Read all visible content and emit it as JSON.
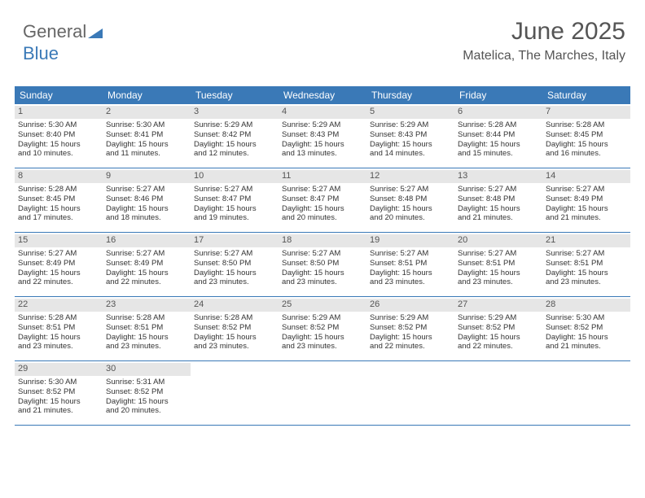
{
  "logo": {
    "part1": "General",
    "part2": "Blue"
  },
  "header": {
    "month": "June 2025",
    "location": "Matelica, The Marches, Italy"
  },
  "colors": {
    "header_bar": "#3a79b7",
    "header_text": "#ffffff",
    "daynum_bg": "#e6e6e6",
    "text": "#333333",
    "page_bg": "#ffffff"
  },
  "daynames": [
    "Sunday",
    "Monday",
    "Tuesday",
    "Wednesday",
    "Thursday",
    "Friday",
    "Saturday"
  ],
  "weeks": [
    [
      {
        "n": "1",
        "sr": "Sunrise: 5:30 AM",
        "ss": "Sunset: 8:40 PM",
        "d1": "Daylight: 15 hours",
        "d2": "and 10 minutes."
      },
      {
        "n": "2",
        "sr": "Sunrise: 5:30 AM",
        "ss": "Sunset: 8:41 PM",
        "d1": "Daylight: 15 hours",
        "d2": "and 11 minutes."
      },
      {
        "n": "3",
        "sr": "Sunrise: 5:29 AM",
        "ss": "Sunset: 8:42 PM",
        "d1": "Daylight: 15 hours",
        "d2": "and 12 minutes."
      },
      {
        "n": "4",
        "sr": "Sunrise: 5:29 AM",
        "ss": "Sunset: 8:43 PM",
        "d1": "Daylight: 15 hours",
        "d2": "and 13 minutes."
      },
      {
        "n": "5",
        "sr": "Sunrise: 5:29 AM",
        "ss": "Sunset: 8:43 PM",
        "d1": "Daylight: 15 hours",
        "d2": "and 14 minutes."
      },
      {
        "n": "6",
        "sr": "Sunrise: 5:28 AM",
        "ss": "Sunset: 8:44 PM",
        "d1": "Daylight: 15 hours",
        "d2": "and 15 minutes."
      },
      {
        "n": "7",
        "sr": "Sunrise: 5:28 AM",
        "ss": "Sunset: 8:45 PM",
        "d1": "Daylight: 15 hours",
        "d2": "and 16 minutes."
      }
    ],
    [
      {
        "n": "8",
        "sr": "Sunrise: 5:28 AM",
        "ss": "Sunset: 8:45 PM",
        "d1": "Daylight: 15 hours",
        "d2": "and 17 minutes."
      },
      {
        "n": "9",
        "sr": "Sunrise: 5:27 AM",
        "ss": "Sunset: 8:46 PM",
        "d1": "Daylight: 15 hours",
        "d2": "and 18 minutes."
      },
      {
        "n": "10",
        "sr": "Sunrise: 5:27 AM",
        "ss": "Sunset: 8:47 PM",
        "d1": "Daylight: 15 hours",
        "d2": "and 19 minutes."
      },
      {
        "n": "11",
        "sr": "Sunrise: 5:27 AM",
        "ss": "Sunset: 8:47 PM",
        "d1": "Daylight: 15 hours",
        "d2": "and 20 minutes."
      },
      {
        "n": "12",
        "sr": "Sunrise: 5:27 AM",
        "ss": "Sunset: 8:48 PM",
        "d1": "Daylight: 15 hours",
        "d2": "and 20 minutes."
      },
      {
        "n": "13",
        "sr": "Sunrise: 5:27 AM",
        "ss": "Sunset: 8:48 PM",
        "d1": "Daylight: 15 hours",
        "d2": "and 21 minutes."
      },
      {
        "n": "14",
        "sr": "Sunrise: 5:27 AM",
        "ss": "Sunset: 8:49 PM",
        "d1": "Daylight: 15 hours",
        "d2": "and 21 minutes."
      }
    ],
    [
      {
        "n": "15",
        "sr": "Sunrise: 5:27 AM",
        "ss": "Sunset: 8:49 PM",
        "d1": "Daylight: 15 hours",
        "d2": "and 22 minutes."
      },
      {
        "n": "16",
        "sr": "Sunrise: 5:27 AM",
        "ss": "Sunset: 8:49 PM",
        "d1": "Daylight: 15 hours",
        "d2": "and 22 minutes."
      },
      {
        "n": "17",
        "sr": "Sunrise: 5:27 AM",
        "ss": "Sunset: 8:50 PM",
        "d1": "Daylight: 15 hours",
        "d2": "and 23 minutes."
      },
      {
        "n": "18",
        "sr": "Sunrise: 5:27 AM",
        "ss": "Sunset: 8:50 PM",
        "d1": "Daylight: 15 hours",
        "d2": "and 23 minutes."
      },
      {
        "n": "19",
        "sr": "Sunrise: 5:27 AM",
        "ss": "Sunset: 8:51 PM",
        "d1": "Daylight: 15 hours",
        "d2": "and 23 minutes."
      },
      {
        "n": "20",
        "sr": "Sunrise: 5:27 AM",
        "ss": "Sunset: 8:51 PM",
        "d1": "Daylight: 15 hours",
        "d2": "and 23 minutes."
      },
      {
        "n": "21",
        "sr": "Sunrise: 5:27 AM",
        "ss": "Sunset: 8:51 PM",
        "d1": "Daylight: 15 hours",
        "d2": "and 23 minutes."
      }
    ],
    [
      {
        "n": "22",
        "sr": "Sunrise: 5:28 AM",
        "ss": "Sunset: 8:51 PM",
        "d1": "Daylight: 15 hours",
        "d2": "and 23 minutes."
      },
      {
        "n": "23",
        "sr": "Sunrise: 5:28 AM",
        "ss": "Sunset: 8:51 PM",
        "d1": "Daylight: 15 hours",
        "d2": "and 23 minutes."
      },
      {
        "n": "24",
        "sr": "Sunrise: 5:28 AM",
        "ss": "Sunset: 8:52 PM",
        "d1": "Daylight: 15 hours",
        "d2": "and 23 minutes."
      },
      {
        "n": "25",
        "sr": "Sunrise: 5:29 AM",
        "ss": "Sunset: 8:52 PM",
        "d1": "Daylight: 15 hours",
        "d2": "and 23 minutes."
      },
      {
        "n": "26",
        "sr": "Sunrise: 5:29 AM",
        "ss": "Sunset: 8:52 PM",
        "d1": "Daylight: 15 hours",
        "d2": "and 22 minutes."
      },
      {
        "n": "27",
        "sr": "Sunrise: 5:29 AM",
        "ss": "Sunset: 8:52 PM",
        "d1": "Daylight: 15 hours",
        "d2": "and 22 minutes."
      },
      {
        "n": "28",
        "sr": "Sunrise: 5:30 AM",
        "ss": "Sunset: 8:52 PM",
        "d1": "Daylight: 15 hours",
        "d2": "and 21 minutes."
      }
    ],
    [
      {
        "n": "29",
        "sr": "Sunrise: 5:30 AM",
        "ss": "Sunset: 8:52 PM",
        "d1": "Daylight: 15 hours",
        "d2": "and 21 minutes."
      },
      {
        "n": "30",
        "sr": "Sunrise: 5:31 AM",
        "ss": "Sunset: 8:52 PM",
        "d1": "Daylight: 15 hours",
        "d2": "and 20 minutes."
      },
      {
        "empty": true
      },
      {
        "empty": true
      },
      {
        "empty": true
      },
      {
        "empty": true
      },
      {
        "empty": true
      }
    ]
  ]
}
